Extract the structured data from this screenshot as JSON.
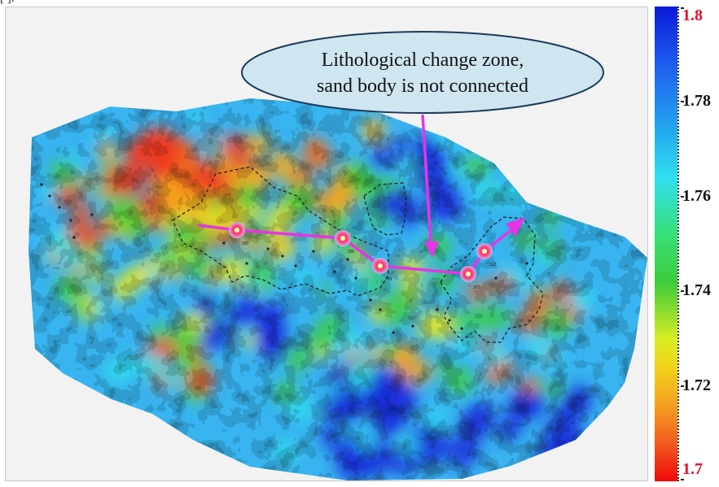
{
  "top_fragment": "[ ].",
  "callout": {
    "line1": "Lithological change zone,",
    "line2": "sand body is not connected",
    "fill": "#cfe6f1",
    "stroke": "#1b3a5a"
  },
  "colorbar": {
    "min": 1.7,
    "max": 1.8,
    "ticks": [
      {
        "label": "1.8",
        "value": 1.8,
        "highlight": true
      },
      {
        "label": "1.78",
        "value": 1.78,
        "highlight": false
      },
      {
        "label": "1.76",
        "value": 1.76,
        "highlight": false
      },
      {
        "label": "1.74",
        "value": 1.74,
        "highlight": false
      },
      {
        "label": "1.72",
        "value": 1.72,
        "highlight": false
      },
      {
        "label": "1.7",
        "value": 1.7,
        "highlight": true
      }
    ],
    "highlight_color": "#e8102a"
  },
  "colors": {
    "connection_line": "#e535e5",
    "boundary": "#222222",
    "well_marker": "#ff2b6a"
  },
  "wells": [
    {
      "label": "250"
    },
    {
      "label": "256"
    },
    {
      "label": "259"
    },
    {
      "label": "307"
    },
    {
      "label": "312"
    }
  ]
}
